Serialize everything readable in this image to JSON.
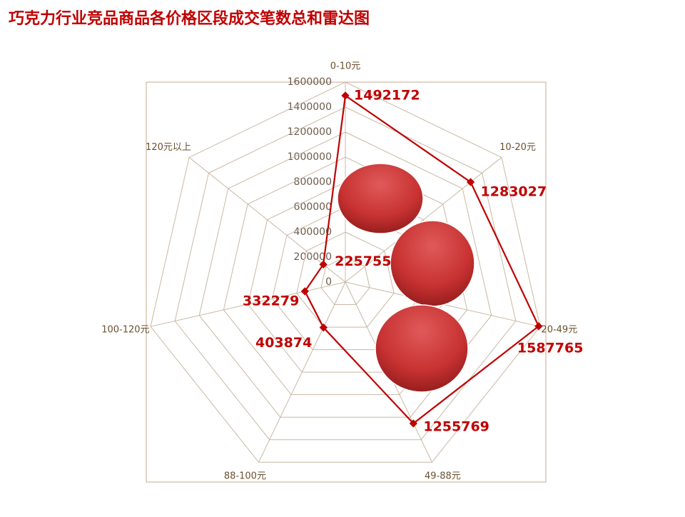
{
  "chart_data": {
    "type": "radar",
    "title": "巧克力行业竞品商品各价格区段成交笔数总和雷达图",
    "categories": [
      "0-10元",
      "10-20元",
      "20-49元",
      "49-88元",
      "88-100元",
      "100-120元",
      "120元以上"
    ],
    "values": [
      1492172,
      1283027,
      1587765,
      1255769,
      403874,
      332279,
      225755
    ],
    "color": "#c00000",
    "rlim": [
      0,
      1600000
    ],
    "rticks": [
      0,
      200000,
      400000,
      600000,
      800000,
      1000000,
      1200000,
      1400000,
      1600000
    ],
    "grid": true
  }
}
